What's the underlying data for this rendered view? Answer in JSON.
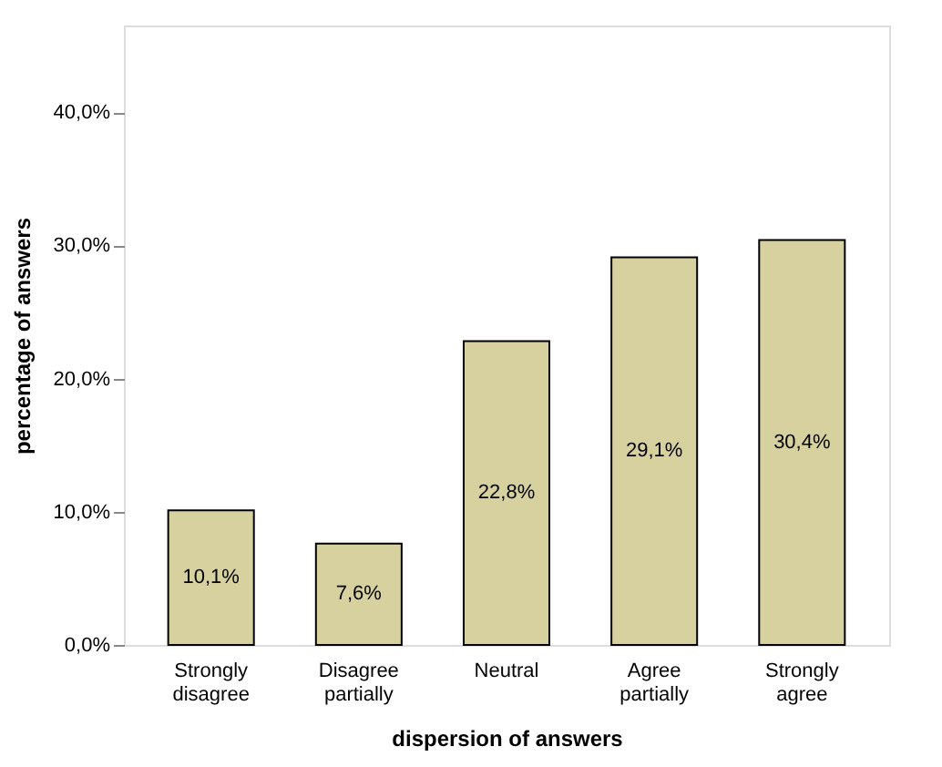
{
  "chart_data": {
    "type": "bar",
    "xlabel": "dispersion of answers",
    "ylabel": "percentage of answers",
    "categories": [
      "Strongly disagree",
      "Disagree partially",
      "Neutral",
      "Agree partially",
      "Strongly agree"
    ],
    "values": [
      10.1,
      7.6,
      22.8,
      29.1,
      30.4
    ],
    "value_labels": [
      "10,1%",
      "7,6%",
      "22,8%",
      "29,1%",
      "30,4%"
    ],
    "color": "#d6d19f",
    "ylim": [
      0,
      46.5
    ],
    "yticks": [
      {
        "value": 0,
        "label": "0,0%"
      },
      {
        "value": 10,
        "label": "10,0%"
      },
      {
        "value": 20,
        "label": "20,0%"
      },
      {
        "value": 30,
        "label": "30,0%"
      },
      {
        "value": 40,
        "label": "40,0%"
      }
    ],
    "grid": false
  }
}
